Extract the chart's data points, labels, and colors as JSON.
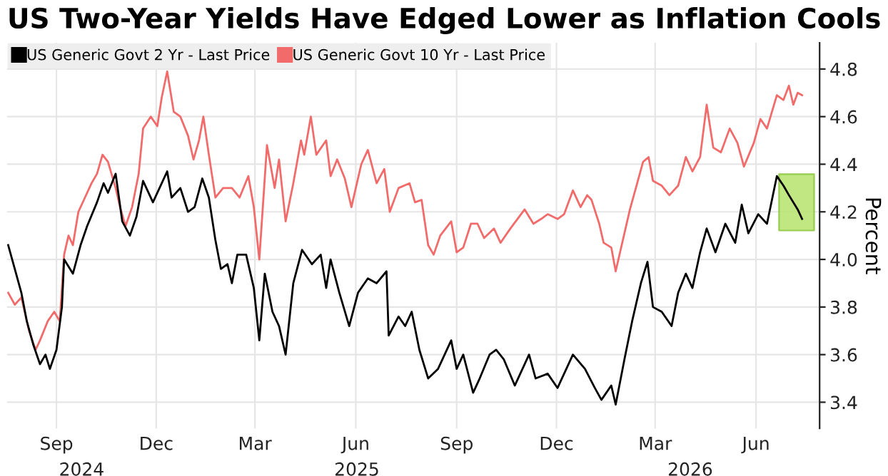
{
  "chart_data": {
    "type": "line",
    "title": "US Two-Year Yields Have Edged Lower as Inflation Cools",
    "ylabel": "Percent",
    "xlim": [
      "2024-07-18",
      "2026-07-29"
    ],
    "ylim": [
      3.29,
      4.91
    ],
    "yticks": [
      3.4,
      3.6,
      3.8,
      {
        "value": 4.0,
        "label": "4.0"
      },
      4.2,
      4.4,
      4.6,
      4.8
    ],
    "xticks": [
      {
        "value": "2024-09-01",
        "label": "Sep"
      },
      {
        "value": "2024-12-01",
        "label": "Dec"
      },
      {
        "value": "2025-03-01",
        "label": "Mar"
      },
      {
        "value": "2025-06-01",
        "label": "Jun"
      },
      {
        "value": "2025-09-01",
        "label": "Sep"
      },
      {
        "value": "2025-12-01",
        "label": "Dec"
      },
      {
        "value": "2026-03-01",
        "label": "Mar"
      },
      {
        "value": "2026-06-01",
        "label": "Jun"
      }
    ],
    "x2lim": [
      "2024-07-18",
      "2026-07-29"
    ],
    "x2ticks": [
      {
        "value": "2024-09-24",
        "label": "2024"
      },
      {
        "value": "2025-06-02",
        "label": "2025"
      },
      {
        "value": "2026-04-02",
        "label": "2026"
      }
    ],
    "grid": true,
    "legend": "top left",
    "bands": [
      {
        "axis": "x",
        "from": "2026-06-22",
        "to": "2026-07-24",
        "color": "#b5e36b"
      }
    ],
    "series": [
      {
        "name": "US Generic Govt 2 Yr - Last Price",
        "color": "#000000",
        "x": [
          "2024-07-19",
          "2024-07-25",
          "2024-07-31",
          "2024-08-05",
          "2024-08-11",
          "2024-08-17",
          "2024-08-22",
          "2024-08-26",
          "2024-09-01",
          "2024-09-06",
          "2024-09-08",
          "2024-09-16",
          "2024-09-23",
          "2024-09-29",
          "2024-10-08",
          "2024-10-14",
          "2024-10-18",
          "2024-10-25",
          "2024-10-31",
          "2024-11-07",
          "2024-11-13",
          "2024-11-19",
          "2024-11-28",
          "2024-12-11",
          "2024-12-15",
          "2024-12-23",
          "2024-12-30",
          "2025-01-05",
          "2025-01-12",
          "2025-01-18",
          "2025-01-24",
          "2025-01-29",
          "2025-02-04",
          "2025-02-08",
          "2025-02-13",
          "2025-02-21",
          "2025-02-28",
          "2025-03-05",
          "2025-03-10",
          "2025-03-17",
          "2025-03-23",
          "2025-03-29",
          "2025-04-05",
          "2025-04-13",
          "2025-04-22",
          "2025-04-30",
          "2025-05-05",
          "2025-05-09",
          "2025-05-17",
          "2025-05-26",
          "2025-06-03",
          "2025-06-12",
          "2025-06-20",
          "2025-06-29",
          "2025-07-01",
          "2025-07-10",
          "2025-07-16",
          "2025-07-22",
          "2025-07-29",
          "2025-08-06",
          "2025-08-15",
          "2025-08-27",
          "2025-09-01",
          "2025-09-07",
          "2025-09-16",
          "2025-09-22",
          "2025-10-01",
          "2025-10-07",
          "2025-10-14",
          "2025-10-24",
          "2025-11-06",
          "2025-11-12",
          "2025-11-23",
          "2025-12-02",
          "2025-12-16",
          "2025-12-27",
          "2026-01-05",
          "2026-01-11",
          "2026-01-20",
          "2026-01-24",
          "2026-02-01",
          "2026-02-08",
          "2026-02-16",
          "2026-02-22",
          "2026-02-27",
          "2026-03-07",
          "2026-03-16",
          "2026-03-22",
          "2026-03-29",
          "2026-04-04",
          "2026-04-11",
          "2026-04-17",
          "2026-04-25",
          "2026-05-04",
          "2026-05-13",
          "2026-05-19",
          "2026-05-25",
          "2026-06-03",
          "2026-06-11",
          "2026-06-20",
          "2026-06-26",
          "2026-07-01",
          "2026-07-09",
          "2026-07-13"
        ],
        "values": [
          4.06,
          3.96,
          3.86,
          3.74,
          3.64,
          3.56,
          3.6,
          3.54,
          3.62,
          3.8,
          4.0,
          3.94,
          4.06,
          4.14,
          4.24,
          4.32,
          4.28,
          4.36,
          4.16,
          4.1,
          4.18,
          4.33,
          4.24,
          4.37,
          4.26,
          4.3,
          4.2,
          4.22,
          4.34,
          4.26,
          4.08,
          3.96,
          3.98,
          3.9,
          4.02,
          4.02,
          3.88,
          3.66,
          3.94,
          3.78,
          3.72,
          3.6,
          3.9,
          4.04,
          3.98,
          4.02,
          3.88,
          4.0,
          3.86,
          3.72,
          3.86,
          3.92,
          3.9,
          3.95,
          3.68,
          3.76,
          3.72,
          3.78,
          3.62,
          3.5,
          3.54,
          3.66,
          3.54,
          3.6,
          3.44,
          3.5,
          3.6,
          3.62,
          3.58,
          3.47,
          3.6,
          3.5,
          3.52,
          3.46,
          3.6,
          3.54,
          3.46,
          3.41,
          3.47,
          3.39,
          3.58,
          3.74,
          3.9,
          3.99,
          3.8,
          3.78,
          3.72,
          3.86,
          3.94,
          3.88,
          4.03,
          4.13,
          4.03,
          4.15,
          4.07,
          4.23,
          4.11,
          4.19,
          4.15,
          4.35,
          4.31,
          4.27,
          4.21,
          4.17
        ]
      },
      {
        "name": "US Generic Govt 10 Yr - Last Price",
        "color": "#f26b6b",
        "x": [
          "2024-07-19",
          "2024-07-25",
          "2024-07-31",
          "2024-08-03",
          "2024-08-07",
          "2024-08-13",
          "2024-08-17",
          "2024-08-24",
          "2024-08-30",
          "2024-09-04",
          "2024-09-08",
          "2024-09-12",
          "2024-09-16",
          "2024-09-21",
          "2024-09-27",
          "2024-10-03",
          "2024-10-08",
          "2024-10-13",
          "2024-10-18",
          "2024-10-25",
          "2024-10-29",
          "2024-11-03",
          "2024-11-09",
          "2024-11-15",
          "2024-11-19",
          "2024-11-26",
          "2024-12-02",
          "2024-12-06",
          "2024-12-11",
          "2024-12-17",
          "2024-12-23",
          "2024-12-30",
          "2025-01-04",
          "2025-01-09",
          "2025-01-13",
          "2025-01-18",
          "2025-01-24",
          "2025-01-31",
          "2025-02-08",
          "2025-02-15",
          "2025-02-23",
          "2025-02-28",
          "2025-03-05",
          "2025-03-12",
          "2025-03-19",
          "2025-03-23",
          "2025-03-29",
          "2025-04-05",
          "2025-04-12",
          "2025-04-15",
          "2025-04-21",
          "2025-04-26",
          "2025-05-05",
          "2025-05-09",
          "2025-05-15",
          "2025-05-22",
          "2025-05-28",
          "2025-06-06",
          "2025-06-12",
          "2025-06-20",
          "2025-06-27",
          "2025-07-02",
          "2025-07-10",
          "2025-07-20",
          "2025-07-25",
          "2025-07-31",
          "2025-08-06",
          "2025-08-11",
          "2025-08-17",
          "2025-08-27",
          "2025-09-01",
          "2025-09-07",
          "2025-09-14",
          "2025-09-20",
          "2025-09-26",
          "2025-10-05",
          "2025-10-11",
          "2025-10-20",
          "2025-11-02",
          "2025-11-10",
          "2025-11-17",
          "2025-11-23",
          "2025-12-02",
          "2025-12-08",
          "2025-12-16",
          "2025-12-23",
          "2025-12-29",
          "2026-01-02",
          "2026-01-09",
          "2026-01-13",
          "2026-01-20",
          "2026-01-24",
          "2026-01-28",
          "2026-02-06",
          "2026-02-12",
          "2026-02-18",
          "2026-02-23",
          "2026-02-27",
          "2026-03-07",
          "2026-03-14",
          "2026-03-22",
          "2026-03-29",
          "2026-04-04",
          "2026-04-11",
          "2026-04-17",
          "2026-04-23",
          "2026-04-30",
          "2026-05-08",
          "2026-05-15",
          "2026-05-21",
          "2026-05-30",
          "2026-06-05",
          "2026-06-11",
          "2026-06-20",
          "2026-06-26",
          "2026-07-01",
          "2026-07-05",
          "2026-07-09",
          "2026-07-13"
        ],
        "values": [
          3.86,
          3.81,
          3.84,
          3.78,
          3.7,
          3.62,
          3.66,
          3.74,
          3.78,
          3.74,
          4.02,
          4.1,
          4.06,
          4.2,
          4.26,
          4.32,
          4.36,
          4.44,
          4.41,
          4.3,
          4.22,
          4.14,
          4.22,
          4.36,
          4.55,
          4.6,
          4.56,
          4.68,
          4.79,
          4.62,
          4.6,
          4.52,
          4.42,
          4.5,
          4.6,
          4.44,
          4.26,
          4.3,
          4.3,
          4.26,
          4.35,
          4.22,
          4.0,
          4.48,
          4.3,
          4.42,
          4.16,
          4.32,
          4.5,
          4.44,
          4.6,
          4.44,
          4.5,
          4.35,
          4.42,
          4.34,
          4.22,
          4.4,
          4.46,
          4.32,
          4.38,
          4.2,
          4.3,
          4.32,
          4.24,
          4.25,
          4.06,
          4.02,
          4.1,
          4.16,
          4.03,
          4.05,
          4.15,
          4.15,
          4.09,
          4.13,
          4.07,
          4.13,
          4.21,
          4.15,
          4.17,
          4.19,
          4.17,
          4.19,
          4.29,
          4.22,
          4.27,
          4.25,
          4.15,
          4.07,
          4.05,
          3.95,
          4.03,
          4.21,
          4.31,
          4.41,
          4.43,
          4.33,
          4.31,
          4.27,
          4.31,
          4.43,
          4.37,
          4.43,
          4.65,
          4.47,
          4.45,
          4.55,
          4.49,
          4.39,
          4.49,
          4.59,
          4.55,
          4.69,
          4.67,
          4.73,
          4.65,
          4.7,
          4.69
        ]
      }
    ]
  }
}
